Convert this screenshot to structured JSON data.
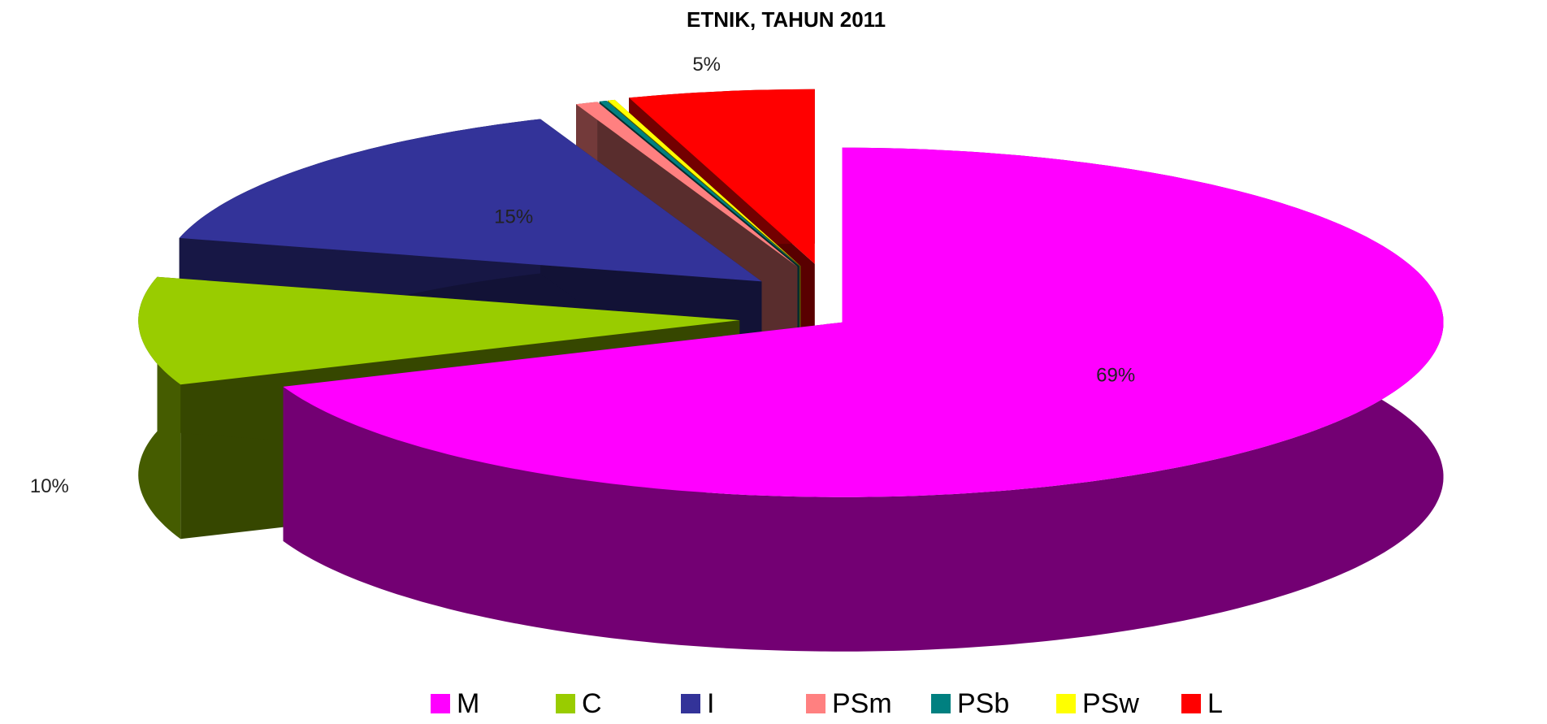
{
  "chart_data": {
    "type": "pie3d",
    "title": "ETNIK, TAHUN 2011",
    "categories": [
      "M",
      "C",
      "I",
      "PSm",
      "PSb",
      "PSw",
      "L"
    ],
    "values": [
      69,
      10,
      15,
      0.6,
      0.2,
      0.2,
      5
    ],
    "value_labels": [
      "69%",
      "10%",
      "15%",
      null,
      null,
      null,
      "5%"
    ],
    "colors": [
      "#ff00ff",
      "#99cc00",
      "#333399",
      "#ff8080",
      "#008080",
      "#ffff00",
      "#ff0000"
    ],
    "legend": "bottom"
  }
}
